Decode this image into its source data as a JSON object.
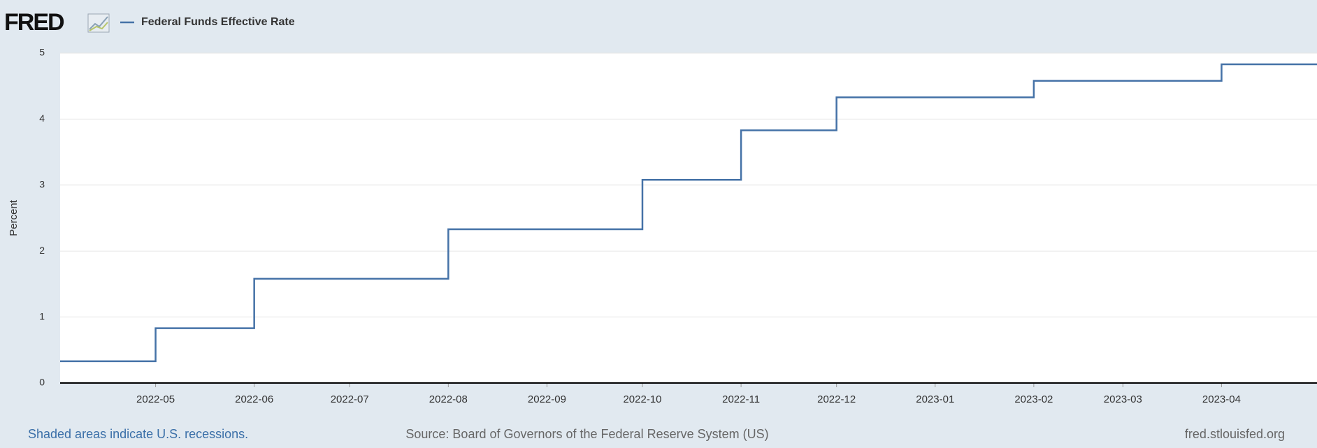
{
  "logo": "FRED",
  "chart_data": {
    "type": "line",
    "x": [
      "2022-04",
      "2022-05",
      "2022-05",
      "2022-06",
      "2022-06",
      "2022-08",
      "2022-08",
      "2022-10",
      "2022-10",
      "2022-11",
      "2022-11",
      "2022-12",
      "2022-12",
      "2023-02",
      "2023-02",
      "2023-04",
      "2023-04",
      "2023-05"
    ],
    "series": [
      {
        "name": "Federal Funds Effective Rate",
        "color": "#4572a7",
        "values": [
          0.33,
          0.33,
          0.83,
          0.83,
          1.58,
          1.58,
          2.33,
          2.33,
          3.08,
          3.08,
          3.83,
          3.83,
          4.33,
          4.33,
          4.58,
          4.58,
          4.83,
          4.83
        ]
      }
    ],
    "xlim": [
      "2022-04",
      "2023-05"
    ],
    "xticks": [
      "2022-05",
      "2022-06",
      "2022-07",
      "2022-08",
      "2022-09",
      "2022-10",
      "2022-11",
      "2022-12",
      "2023-01",
      "2023-02",
      "2023-03",
      "2023-04"
    ],
    "ylim": [
      0,
      5
    ],
    "yticks": [
      0,
      1,
      2,
      3,
      4,
      5
    ],
    "grid": true,
    "ylabel": "Percent",
    "note": "Shaded areas indicate U.S. recessions.",
    "source": "Source: Board of Governors of the Federal Reserve System (US)",
    "site": "fred.stlouisfed.org"
  }
}
